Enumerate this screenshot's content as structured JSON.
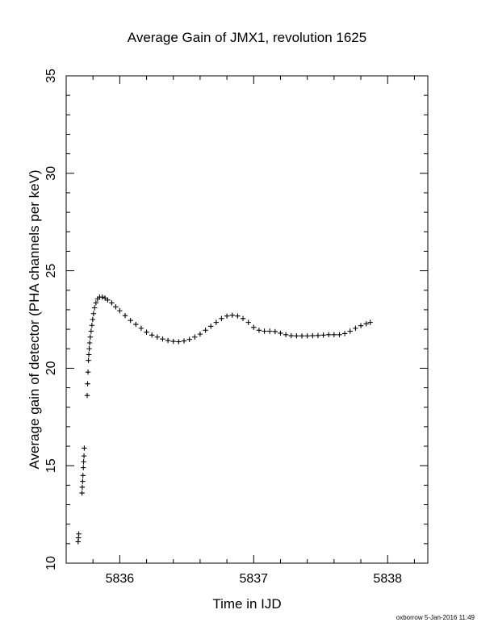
{
  "chart_data": {
    "type": "scatter",
    "title": "Average Gain of JMX1, revolution 1625",
    "xlabel": "Time in IJD",
    "ylabel": "Average gain of detector (PHA channels per keV)",
    "xlim": [
      5835.6,
      5838.3
    ],
    "ylim": [
      10,
      35
    ],
    "xticks": [
      5836,
      5837,
      5838
    ],
    "xtick_labels": [
      "5836",
      "5837",
      "5838"
    ],
    "xminor_step": 0.2,
    "yticks": [
      10,
      15,
      20,
      25,
      30,
      35
    ],
    "ytick_labels": [
      "10",
      "15",
      "20",
      "25",
      "30",
      "35"
    ],
    "yminor_step": 1,
    "grid": false,
    "marker": "plus",
    "series": [
      {
        "points": [
          [
            5835.689,
            11.1
          ],
          [
            5835.692,
            11.3
          ],
          [
            5835.694,
            11.5
          ],
          [
            5835.718,
            13.6
          ],
          [
            5835.72,
            13.9
          ],
          [
            5835.723,
            14.2
          ],
          [
            5835.725,
            14.5
          ],
          [
            5835.728,
            14.9
          ],
          [
            5835.73,
            15.2
          ],
          [
            5835.733,
            15.5
          ],
          [
            5835.735,
            15.9
          ],
          [
            5835.757,
            18.6
          ],
          [
            5835.76,
            19.2
          ],
          [
            5835.763,
            19.8
          ],
          [
            5835.766,
            20.4
          ],
          [
            5835.769,
            20.7
          ],
          [
            5835.772,
            21.0
          ],
          [
            5835.775,
            21.3
          ],
          [
            5835.78,
            21.6
          ],
          [
            5835.786,
            21.9
          ],
          [
            5835.792,
            22.2
          ],
          [
            5835.798,
            22.5
          ],
          [
            5835.804,
            22.8
          ],
          [
            5835.812,
            23.1
          ],
          [
            5835.822,
            23.35
          ],
          [
            5835.834,
            23.55
          ],
          [
            5835.85,
            23.65
          ],
          [
            5835.87,
            23.65
          ],
          [
            5835.89,
            23.6
          ],
          [
            5835.91,
            23.5
          ],
          [
            5835.94,
            23.35
          ],
          [
            5835.97,
            23.15
          ],
          [
            5836.0,
            22.95
          ],
          [
            5836.04,
            22.7
          ],
          [
            5836.08,
            22.45
          ],
          [
            5836.12,
            22.25
          ],
          [
            5836.16,
            22.05
          ],
          [
            5836.2,
            21.85
          ],
          [
            5836.24,
            21.7
          ],
          [
            5836.28,
            21.6
          ],
          [
            5836.32,
            21.5
          ],
          [
            5836.36,
            21.42
          ],
          [
            5836.4,
            21.38
          ],
          [
            5836.44,
            21.36
          ],
          [
            5836.48,
            21.4
          ],
          [
            5836.52,
            21.48
          ],
          [
            5836.56,
            21.6
          ],
          [
            5836.6,
            21.75
          ],
          [
            5836.64,
            21.95
          ],
          [
            5836.68,
            22.15
          ],
          [
            5836.72,
            22.35
          ],
          [
            5836.76,
            22.55
          ],
          [
            5836.8,
            22.68
          ],
          [
            5836.84,
            22.72
          ],
          [
            5836.88,
            22.68
          ],
          [
            5836.92,
            22.55
          ],
          [
            5836.96,
            22.35
          ],
          [
            5837.0,
            22.1
          ],
          [
            5837.04,
            21.95
          ],
          [
            5837.08,
            21.9
          ],
          [
            5837.12,
            21.9
          ],
          [
            5837.16,
            21.88
          ],
          [
            5837.2,
            21.8
          ],
          [
            5837.24,
            21.72
          ],
          [
            5837.28,
            21.67
          ],
          [
            5837.32,
            21.66
          ],
          [
            5837.36,
            21.66
          ],
          [
            5837.4,
            21.66
          ],
          [
            5837.44,
            21.67
          ],
          [
            5837.48,
            21.68
          ],
          [
            5837.52,
            21.7
          ],
          [
            5837.56,
            21.72
          ],
          [
            5837.6,
            21.72
          ],
          [
            5837.64,
            21.72
          ],
          [
            5837.68,
            21.78
          ],
          [
            5837.72,
            21.9
          ],
          [
            5837.76,
            22.05
          ],
          [
            5837.8,
            22.18
          ],
          [
            5837.84,
            22.28
          ],
          [
            5837.87,
            22.35
          ]
        ]
      }
    ]
  },
  "footer": {
    "credit": "oxborrow  5-Jan-2016 11:49"
  }
}
